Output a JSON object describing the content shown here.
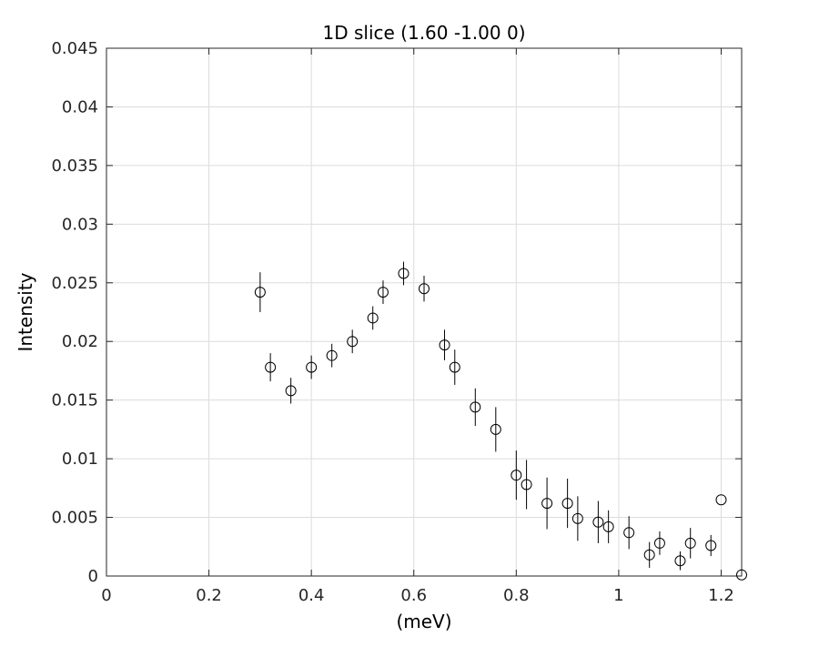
{
  "chart_data": {
    "type": "scatter",
    "title": "1D slice (1.60 -1.00 0)",
    "xlabel": "(meV)",
    "ylabel": "Intensity",
    "xlim": [
      0,
      1.24
    ],
    "ylim": [
      0,
      0.045
    ],
    "x_ticks": [
      0,
      0.2,
      0.4,
      0.6,
      0.8,
      1,
      1.2
    ],
    "x_tick_labels": [
      "0",
      "0.2",
      "0.4",
      "0.6",
      "0.8",
      "1",
      "1.2"
    ],
    "y_ticks": [
      0,
      0.005,
      0.01,
      0.015,
      0.02,
      0.025,
      0.03,
      0.035,
      0.04,
      0.045
    ],
    "y_tick_labels": [
      "0",
      "0.005",
      "0.01",
      "0.015",
      "0.02",
      "0.025",
      "0.03",
      "0.035",
      "0.04",
      "0.045"
    ],
    "grid": true,
    "marker": "open-circle",
    "colors": {
      "marker": "#000000",
      "grid": "#dcdcdc",
      "axes": "#262626"
    },
    "series": [
      {
        "x": [
          0.3,
          0.32,
          0.36,
          0.4,
          0.44,
          0.48,
          0.52,
          0.54,
          0.58,
          0.62,
          0.66,
          0.68,
          0.72,
          0.76,
          0.8,
          0.82,
          0.86,
          0.9,
          0.92,
          0.96,
          0.98,
          1.02,
          1.06,
          1.08,
          1.12,
          1.14,
          1.18,
          1.2,
          1.24
        ],
        "y": [
          0.0242,
          0.0178,
          0.0158,
          0.0178,
          0.0188,
          0.02,
          0.022,
          0.0242,
          0.0258,
          0.0245,
          0.0197,
          0.0178,
          0.0144,
          0.0125,
          0.0086,
          0.0078,
          0.0062,
          0.0062,
          0.0049,
          0.0046,
          0.0042,
          0.0037,
          0.0018,
          0.0028,
          0.0013,
          0.0028,
          0.0026,
          0.0065,
          0.0001
        ],
        "error": [
          0.0017,
          0.0012,
          0.0011,
          0.001,
          0.001,
          0.001,
          0.001,
          0.001,
          0.001,
          0.0011,
          0.0013,
          0.0015,
          0.0016,
          0.0019,
          0.0021,
          0.0021,
          0.0022,
          0.0021,
          0.0019,
          0.0018,
          0.0014,
          0.0014,
          0.0011,
          0.001,
          0.0008,
          0.0013,
          0.0009,
          0,
          0
        ]
      }
    ]
  }
}
